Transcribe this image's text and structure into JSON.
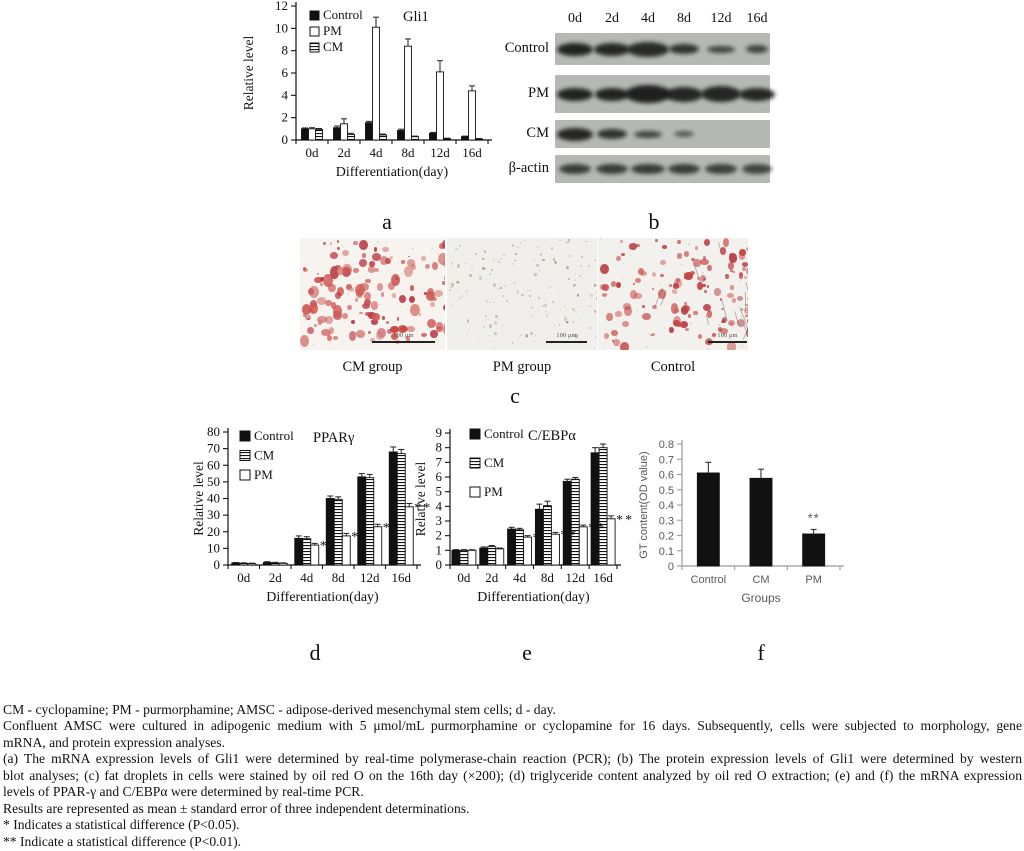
{
  "figure": {
    "panel_labels": {
      "a": "a",
      "b": "b",
      "c": "c",
      "d": "d",
      "e": "e",
      "f": "f"
    }
  },
  "chart_data": [
    {
      "id": "a",
      "type": "bar",
      "title": "Gli1",
      "ylabel": "Relative level",
      "xlabel": "Differentiation(day)",
      "ylim": [
        0,
        12
      ],
      "ystep": 2,
      "grid": false,
      "legend": true,
      "legend_position": "top-left-inside",
      "categories": [
        "0d",
        "2d",
        "4d",
        "8d",
        "12d",
        "16d"
      ],
      "series": [
        {
          "name": "Control",
          "style": "solid",
          "values": [
            1.0,
            1.1,
            1.55,
            0.85,
            0.6,
            0.3
          ],
          "errors": [
            0.08,
            0.15,
            0.12,
            0.12,
            0.08,
            0.05
          ]
        },
        {
          "name": "PM",
          "style": "open",
          "values": [
            1.0,
            1.45,
            10.1,
            8.4,
            6.1,
            4.4
          ],
          "errors": [
            0.1,
            0.45,
            0.9,
            0.65,
            1.0,
            0.45
          ]
        },
        {
          "name": "CM",
          "style": "hatch",
          "values": [
            0.95,
            0.5,
            0.45,
            0.3,
            0.12,
            0.1
          ],
          "errors": [
            0.08,
            0.1,
            0.08,
            0.05,
            0.04,
            0.03
          ]
        }
      ]
    },
    {
      "id": "d",
      "type": "bar",
      "title": "PPARγ",
      "ylabel": "Relative level",
      "xlabel": "Differentiation(day)",
      "ylim": [
        0,
        80
      ],
      "ystep": 10,
      "grid": false,
      "legend": true,
      "legend_position": "top-left-inside",
      "categories": [
        "0d",
        "2d",
        "4d",
        "8d",
        "12d",
        "16d"
      ],
      "series": [
        {
          "name": "Control",
          "style": "solid",
          "values": [
            1.2,
            1.5,
            16,
            40,
            53,
            68
          ],
          "errors": [
            0.3,
            0.5,
            1.5,
            1.5,
            2,
            3
          ]
        },
        {
          "name": "CM",
          "style": "hatch",
          "values": [
            1.0,
            1.2,
            15.8,
            39.5,
            52.5,
            67
          ],
          "errors": [
            0.3,
            0.4,
            1.2,
            1.5,
            2,
            2.5
          ]
        },
        {
          "name": "PM",
          "style": "open",
          "values": [
            0.8,
            1.0,
            12,
            17.5,
            23,
            35
          ],
          "errors": [
            0.3,
            0.3,
            1.0,
            1.5,
            1.5,
            2
          ],
          "sig": [
            "",
            "",
            "*",
            "**",
            "**",
            "**"
          ]
        }
      ]
    },
    {
      "id": "e",
      "type": "bar",
      "title": "C/EBPα",
      "ylabel": "Relative level",
      "xlabel": "Differentiation(day)",
      "ylim": [
        0,
        9
      ],
      "ystep": 1,
      "grid": false,
      "legend": true,
      "legend_position": "top-left-inside",
      "categories": [
        "0d",
        "2d",
        "4d",
        "8d",
        "12d",
        "16d"
      ],
      "series": [
        {
          "name": "Control",
          "style": "solid",
          "values": [
            1.0,
            1.15,
            2.45,
            3.8,
            5.7,
            7.65
          ],
          "errors": [
            0.05,
            0.08,
            0.12,
            0.35,
            0.15,
            0.35
          ]
        },
        {
          "name": "CM",
          "style": "hatch",
          "values": [
            1.0,
            1.25,
            2.4,
            4.05,
            5.85,
            8.0
          ],
          "errors": [
            0.05,
            0.08,
            0.1,
            0.3,
            0.12,
            0.25
          ]
        },
        {
          "name": "PM",
          "style": "open",
          "values": [
            1.0,
            1.1,
            1.9,
            2.1,
            2.6,
            3.15
          ],
          "errors": [
            0.04,
            0.06,
            0.1,
            0.12,
            0.12,
            0.2
          ],
          "sig": [
            "",
            "",
            "*",
            "**",
            "**",
            "**"
          ]
        }
      ]
    },
    {
      "id": "f",
      "type": "bar",
      "title": "",
      "ylabel": "GT content(OD value)",
      "xlabel": "Groups",
      "ylim": [
        0,
        0.8
      ],
      "ystep": 0.1,
      "grid": false,
      "legend": false,
      "categories": [
        "Control",
        "CM",
        "PM"
      ],
      "series": [
        {
          "name": "GT content",
          "style": "solid",
          "values": [
            0.61,
            0.575,
            0.21
          ],
          "errors": [
            0.07,
            0.06,
            0.03
          ],
          "sig": [
            "",
            "",
            "**"
          ]
        }
      ]
    }
  ],
  "blot": {
    "columns": [
      "0d",
      "2d",
      "4d",
      "8d",
      "12d",
      "16d"
    ],
    "rows": [
      {
        "label": "Control",
        "bands": [
          [
            36,
            13,
            0.95
          ],
          [
            36,
            13,
            0.92
          ],
          [
            42,
            15,
            0.9
          ],
          [
            30,
            10,
            0.85
          ],
          [
            28,
            7,
            0.75
          ],
          [
            22,
            8,
            0.75
          ]
        ]
      },
      {
        "label": "PM",
        "bands": [
          [
            36,
            13,
            0.95
          ],
          [
            34,
            13,
            0.95
          ],
          [
            46,
            18,
            0.97
          ],
          [
            38,
            15,
            0.93
          ],
          [
            40,
            16,
            0.93
          ],
          [
            36,
            13,
            0.93
          ]
        ]
      },
      {
        "label": "CM",
        "bands": [
          [
            36,
            13,
            0.93
          ],
          [
            30,
            10,
            0.85
          ],
          [
            28,
            7,
            0.75
          ],
          [
            20,
            6,
            0.6
          ],
          [
            0,
            0,
            0
          ],
          [
            0,
            0,
            0
          ]
        ]
      },
      {
        "label": "β-actin",
        "bands": [
          [
            32,
            10,
            0.8
          ],
          [
            32,
            10,
            0.8
          ],
          [
            34,
            10,
            0.8
          ],
          [
            32,
            10,
            0.8
          ],
          [
            32,
            10,
            0.78
          ],
          [
            30,
            10,
            0.75
          ]
        ]
      }
    ]
  },
  "micrographs": {
    "items": [
      {
        "label": "CM group",
        "scale_label": "100 μm",
        "style": "cm",
        "description": "dense red-stained fat droplets"
      },
      {
        "label": "PM group",
        "scale_label": "100 μm",
        "style": "pm",
        "description": "sparse faint staining"
      },
      {
        "label": "Control",
        "scale_label": "100 μm",
        "style": "control",
        "description": "abundant red droplets clustered right"
      }
    ]
  },
  "caption": {
    "lines": [
      {
        "text": "CM - cyclopamine; PM - purmorphamine; AMSC - adipose-derived mesenchymal stem cells; d - day.",
        "justify": false
      },
      {
        "text": "Confluent AMSC were cultured in adipogenic medium with 5 μmol/mL purmorphamine or cyclopamine for 16 days. Subsequently, cells were subjected to morphology, gene",
        "justify": true
      },
      {
        "text": "mRNA, and protein expression analyses.",
        "justify": false
      },
      {
        "text": "(a) The mRNA expression levels of Gli1 were determined by real-time polymerase-chain reaction (PCR); (b) The protein expression levels of Gli1 were determined by western",
        "justify": true
      },
      {
        "text": "blot analyses; (c) fat droplets in cells were stained by oil red O on the 16th day (×200); (d) triglyceride content analyzed by oil red O extraction; (e) and (f) the mRNA expression",
        "justify": true
      },
      {
        "text": "levels of PPAR-γ and C/EBPα were determined by real-time PCR.",
        "justify": false
      },
      {
        "text": "Results are represented as mean ± standard error of three independent determinations.",
        "justify": false
      },
      {
        "text": "* Indicates a statistical difference (P<0.05).",
        "justify": false
      },
      {
        "text": "** Indicate a statistical difference (P<0.01).",
        "justify": false
      }
    ]
  },
  "colors": {
    "bar_solid": "#111111",
    "bar_open": "#ffffff",
    "blot_strip": "#b5b8b4",
    "stain_red": "#c5403e",
    "excel_axis": "#9b9b9b",
    "excel_text": "#595959"
  }
}
